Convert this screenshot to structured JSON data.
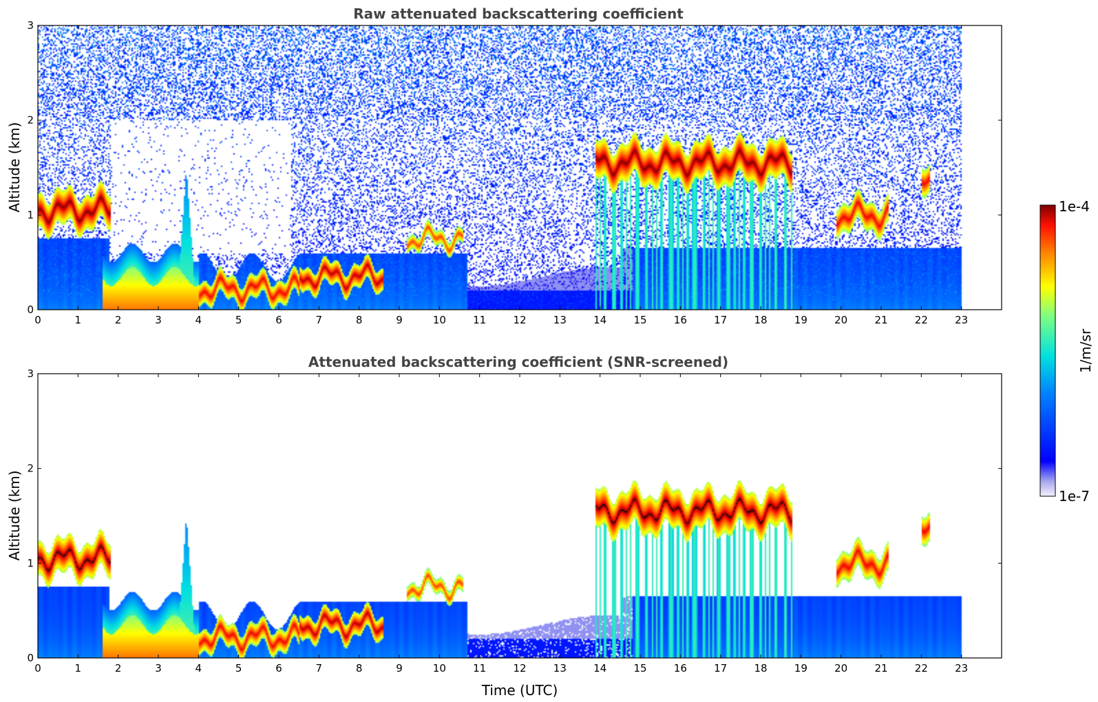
{
  "chart_data": [
    {
      "type": "heatmap",
      "title": "Raw attenuated backscattering coefficient",
      "ylabel": "Altitude (km)",
      "xlabel": "",
      "xlim": [
        0,
        24
      ],
      "ylim": [
        0,
        3
      ],
      "xticks": [
        0,
        1,
        2,
        3,
        4,
        5,
        6,
        7,
        8,
        9,
        10,
        11,
        12,
        13,
        14,
        15,
        16,
        17,
        18,
        19,
        20,
        21,
        22,
        23
      ],
      "yticks": [
        0,
        1,
        2,
        3
      ],
      "data_end_time": 23,
      "noise": "high",
      "features": [
        {
          "kind": "cloud",
          "t0": 0.0,
          "t1": 1.8,
          "alt": 1.05,
          "thick": 0.18,
          "level": 1.0
        },
        {
          "kind": "plume",
          "t0": 1.6,
          "t1": 4.0,
          "alt": 0.1,
          "thick": 0.35,
          "level": 0.85
        },
        {
          "kind": "peak",
          "t": 3.7,
          "alt": 1.5,
          "width": 0.25,
          "level": 0.6
        },
        {
          "kind": "layer",
          "t0": 4.0,
          "t1": 6.5,
          "alt": 0.22,
          "thick": 0.12,
          "level": 0.95
        },
        {
          "kind": "layer",
          "t0": 6.5,
          "t1": 8.6,
          "alt": 0.35,
          "thick": 0.12,
          "level": 0.98
        },
        {
          "kind": "layer",
          "t0": 9.2,
          "t1": 10.6,
          "alt": 0.75,
          "thick": 0.08,
          "level": 0.9
        },
        {
          "kind": "cloud",
          "t0": 13.9,
          "t1": 18.8,
          "alt": 1.55,
          "thick": 0.2,
          "level": 1.0
        },
        {
          "kind": "cloud",
          "t0": 19.9,
          "t1": 21.2,
          "alt": 1.0,
          "thick": 0.15,
          "level": 0.95
        },
        {
          "kind": "cloud",
          "t0": 22.0,
          "t1": 22.2,
          "alt": 1.3,
          "thick": 0.15,
          "level": 0.95
        }
      ]
    },
    {
      "type": "heatmap",
      "title": "Attenuated backscattering coefficient (SNR-screened)",
      "ylabel": "Altitude (km)",
      "xlabel": "Time (UTC)",
      "xlim": [
        0,
        24
      ],
      "ylim": [
        0,
        3
      ],
      "xticks": [
        0,
        1,
        2,
        3,
        4,
        5,
        6,
        7,
        8,
        9,
        10,
        11,
        12,
        13,
        14,
        15,
        16,
        17,
        18,
        19,
        20,
        21,
        22,
        23
      ],
      "yticks": [
        0,
        1,
        2,
        3
      ],
      "data_end_time": 23,
      "noise": "screened",
      "features": [
        {
          "kind": "cloud",
          "t0": 0.0,
          "t1": 1.8,
          "alt": 1.05,
          "thick": 0.18,
          "level": 1.0
        },
        {
          "kind": "plume",
          "t0": 1.6,
          "t1": 4.0,
          "alt": 0.1,
          "thick": 0.35,
          "level": 0.85
        },
        {
          "kind": "peak",
          "t": 3.7,
          "alt": 1.5,
          "width": 0.25,
          "level": 0.6
        },
        {
          "kind": "layer",
          "t0": 4.0,
          "t1": 6.5,
          "alt": 0.22,
          "thick": 0.12,
          "level": 0.95
        },
        {
          "kind": "layer",
          "t0": 6.5,
          "t1": 8.6,
          "alt": 0.35,
          "thick": 0.12,
          "level": 0.98
        },
        {
          "kind": "layer",
          "t0": 9.2,
          "t1": 10.6,
          "alt": 0.75,
          "thick": 0.08,
          "level": 0.9
        },
        {
          "kind": "cloud",
          "t0": 13.9,
          "t1": 18.8,
          "alt": 1.55,
          "thick": 0.2,
          "level": 1.0
        },
        {
          "kind": "cloud",
          "t0": 19.9,
          "t1": 21.2,
          "alt": 1.0,
          "thick": 0.15,
          "level": 0.95
        },
        {
          "kind": "cloud",
          "t0": 22.0,
          "t1": 22.2,
          "alt": 1.3,
          "thick": 0.15,
          "level": 0.95
        }
      ]
    }
  ],
  "colorbar": {
    "max_label": "1e-4",
    "min_label": "1e-7",
    "unit_label": "1/m/sr",
    "colormap": "jet"
  }
}
